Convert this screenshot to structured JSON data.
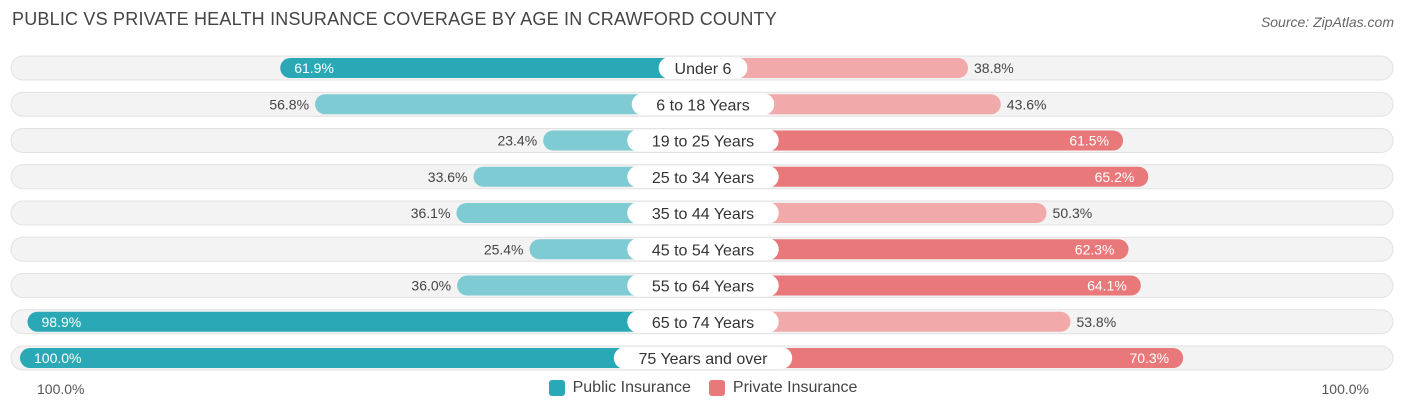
{
  "title": "PUBLIC VS PRIVATE HEALTH INSURANCE COVERAGE BY AGE IN CRAWFORD COUNTY",
  "source": "Source: ZipAtlas.com",
  "axis": {
    "left_label": "100.0%",
    "right_label": "100.0%"
  },
  "legend": {
    "public": "Public Insurance",
    "private": "Private Insurance"
  },
  "colors": {
    "public_strong": "#2aa8b6",
    "public_light": "#7ecbd3",
    "private_strong": "#e8787a",
    "private_light": "#f2a9aa",
    "track": "#efefef"
  },
  "chart_data": {
    "type": "bar",
    "orientation": "horizontal-diverging",
    "title": "PUBLIC VS PRIVATE HEALTH INSURANCE COVERAGE BY AGE IN CRAWFORD COUNTY",
    "categories": [
      "Under 6",
      "6 to 18 Years",
      "19 to 25 Years",
      "25 to 34 Years",
      "35 to 44 Years",
      "45 to 54 Years",
      "55 to 64 Years",
      "65 to 74 Years",
      "75 Years and over"
    ],
    "series": [
      {
        "name": "Public Insurance",
        "values": [
          61.9,
          56.8,
          23.4,
          33.6,
          36.1,
          25.4,
          36.0,
          98.9,
          100.0
        ],
        "labels": [
          "61.9%",
          "56.8%",
          "23.4%",
          "33.6%",
          "36.1%",
          "25.4%",
          "36.0%",
          "98.9%",
          "100.0%"
        ]
      },
      {
        "name": "Private Insurance",
        "values": [
          38.8,
          43.6,
          61.5,
          65.2,
          50.3,
          62.3,
          64.1,
          53.8,
          70.3
        ],
        "labels": [
          "38.8%",
          "43.6%",
          "61.5%",
          "65.2%",
          "50.3%",
          "62.3%",
          "64.1%",
          "53.8%",
          "70.3%"
        ]
      }
    ],
    "xlim": [
      -100,
      100
    ],
    "legend_position": "bottom-center"
  }
}
